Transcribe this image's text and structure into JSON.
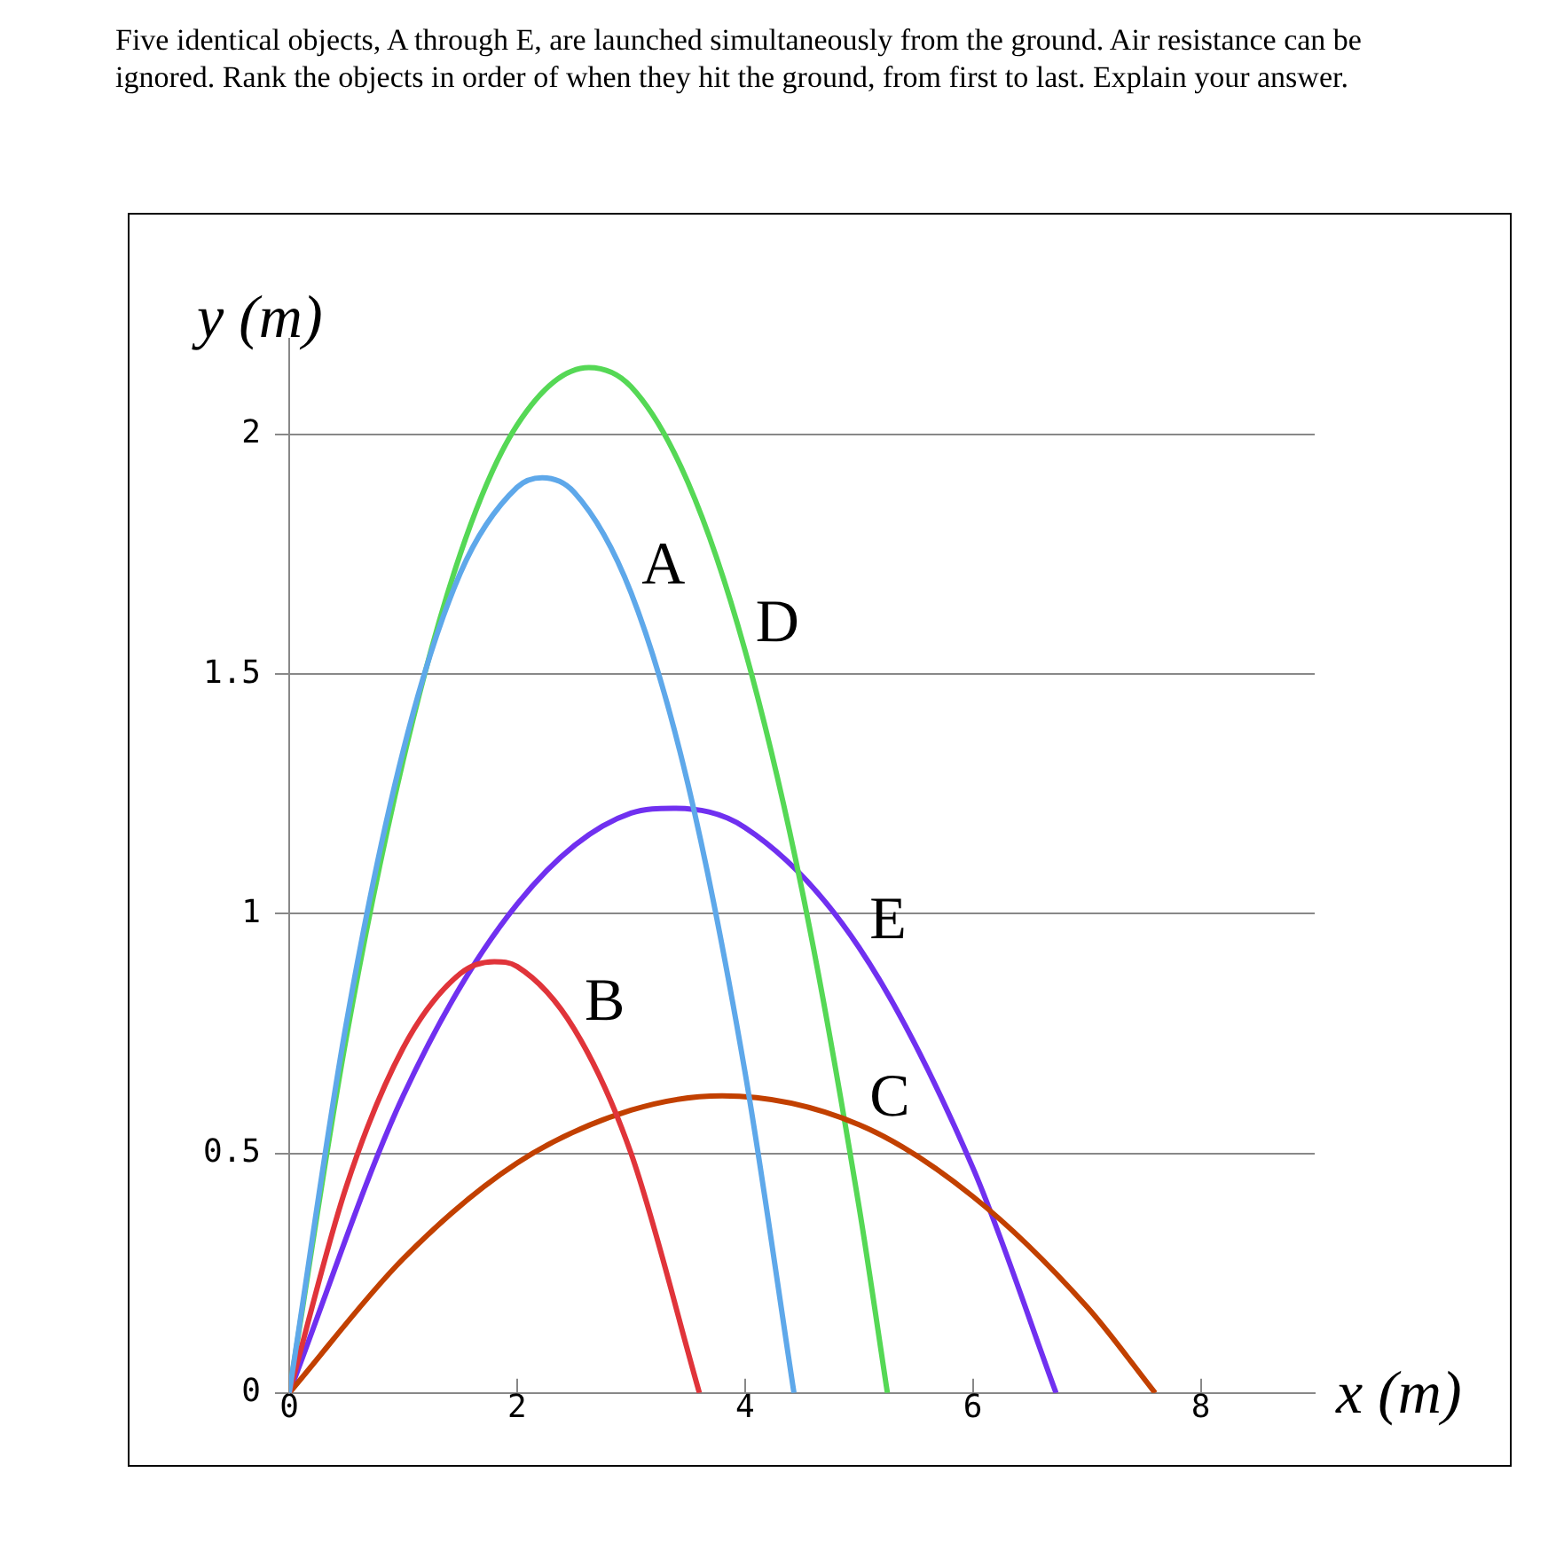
{
  "chart_data": {
    "type": "line",
    "title": "Five identical objects, A through E, are launched simultaneously from the ground. Air resistance can be ignored. Rank the objects in order of when they hit the ground, from first to last. Explain your answer.",
    "xlabel": "x (m)",
    "ylabel": "y (m)",
    "xlim": [
      0,
      9
    ],
    "xticks": [
      0,
      2,
      4,
      6,
      8
    ],
    "ylim": [
      0,
      2.2
    ],
    "yticks": [
      0,
      0.5,
      1,
      1.5,
      2
    ],
    "grid": "y",
    "legend": false,
    "marker": "none",
    "series": [
      {
        "name": "A",
        "color": "#5ea8ea",
        "x": [
          0,
          0.5,
          1,
          1.5,
          2,
          2.22,
          2.5,
          3,
          3.5,
          4,
          4.43
        ],
        "values": [
          0,
          0.77,
          1.34,
          1.71,
          1.89,
          1.91,
          1.88,
          1.67,
          1.27,
          0.67,
          0
        ]
      },
      {
        "name": "B",
        "color": "#e0343a",
        "x": [
          0,
          0.5,
          1,
          1.5,
          1.8,
          2,
          2.5,
          3,
          3.6
        ],
        "values": [
          0,
          0.43,
          0.72,
          0.875,
          0.9,
          0.89,
          0.76,
          0.5,
          0
        ]
      },
      {
        "name": "C",
        "color": "#c24000",
        "x": [
          0,
          1,
          2,
          3,
          3.8,
          5,
          6,
          7,
          7.6
        ],
        "values": [
          0,
          0.28,
          0.48,
          0.59,
          0.62,
          0.56,
          0.41,
          0.18,
          0
        ]
      },
      {
        "name": "D",
        "color": "#55d855",
        "x": [
          0,
          0.5,
          1,
          1.5,
          2,
          2.63,
          3,
          3.5,
          4,
          4.5,
          5,
          5.25
        ],
        "values": [
          0,
          0.74,
          1.32,
          1.75,
          2.02,
          2.14,
          2.1,
          1.9,
          1.55,
          1.05,
          0.39,
          0
        ]
      },
      {
        "name": "E",
        "color": "#7030f0",
        "x": [
          0,
          1,
          2,
          3,
          3.37,
          4,
          5,
          6,
          6.73
        ],
        "values": [
          0,
          0.62,
          1.02,
          1.21,
          1.22,
          1.18,
          0.93,
          0.47,
          0
        ]
      }
    ]
  }
}
